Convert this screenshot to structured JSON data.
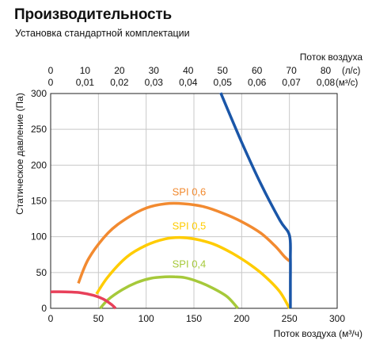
{
  "title": "Производительность",
  "subtitle": "Установка стандартной комплектации",
  "chart_data": {
    "type": "line",
    "xlabel": "Поток воздуха (м³/ч)",
    "ylabel": "Статическое давление (Па)",
    "top_axis_title": "Поток воздуха",
    "xlim": [
      0,
      300
    ],
    "ylim": [
      0,
      300
    ],
    "x_ticks": [
      "0",
      "50",
      "100",
      "150",
      "200",
      "250",
      "300"
    ],
    "y_ticks": [
      "0",
      "50",
      "100",
      "150",
      "200",
      "250",
      "300"
    ],
    "top_axis_ls": {
      "unit": "(л/с)",
      "ticks": [
        {
          "value": 0,
          "label": "0"
        },
        {
          "value": 10,
          "label": "10"
        },
        {
          "value": 20,
          "label": "20"
        },
        {
          "value": 30,
          "label": "30"
        },
        {
          "value": 40,
          "label": "40"
        },
        {
          "value": 50,
          "label": "50"
        },
        {
          "value": 60,
          "label": "60"
        },
        {
          "value": 70,
          "label": "70"
        },
        {
          "value": 80,
          "label": "80"
        }
      ]
    },
    "top_axis_m3s": {
      "unit": "(м³/с)",
      "ticks": [
        {
          "value": 0,
          "label": "0"
        },
        {
          "value": 0.01,
          "label": "0,01"
        },
        {
          "value": 0.02,
          "label": "0,02"
        },
        {
          "value": 0.03,
          "label": "0,03"
        },
        {
          "value": 0.04,
          "label": "0,04"
        },
        {
          "value": 0.05,
          "label": "0,05"
        },
        {
          "value": 0.06,
          "label": "0,06"
        },
        {
          "value": 0.07,
          "label": "0,07"
        },
        {
          "value": 0.08,
          "label": "0,08"
        }
      ]
    },
    "grid": true,
    "series": [
      {
        "name": "SPI 0,6",
        "color": "#f28a30",
        "points": [
          [
            29,
            35
          ],
          [
            40,
            70
          ],
          [
            60,
            105
          ],
          [
            80,
            126
          ],
          [
            100,
            140
          ],
          [
            120,
            146
          ],
          [
            140,
            146
          ],
          [
            160,
            142
          ],
          [
            180,
            133
          ],
          [
            200,
            121
          ],
          [
            220,
            105
          ],
          [
            235,
            87
          ],
          [
            245,
            72
          ],
          [
            250,
            66
          ]
        ]
      },
      {
        "name": "SPI 0,5",
        "color": "#ffcc00",
        "points": [
          [
            48,
            20
          ],
          [
            60,
            44
          ],
          [
            80,
            72
          ],
          [
            100,
            88
          ],
          [
            120,
            97
          ],
          [
            135,
            99
          ],
          [
            150,
            97
          ],
          [
            170,
            90
          ],
          [
            190,
            77
          ],
          [
            210,
            60
          ],
          [
            225,
            44
          ],
          [
            240,
            23
          ],
          [
            250,
            0
          ]
        ]
      },
      {
        "name": "SPI 0,4",
        "color": "#a6c93a",
        "points": [
          [
            52,
            0
          ],
          [
            60,
            12
          ],
          [
            75,
            26
          ],
          [
            90,
            36
          ],
          [
            105,
            42
          ],
          [
            120,
            44
          ],
          [
            130,
            44
          ],
          [
            140,
            43
          ],
          [
            155,
            37
          ],
          [
            170,
            28
          ],
          [
            185,
            16
          ],
          [
            196,
            0
          ]
        ]
      },
      {
        "name": "",
        "color": "#e8405a",
        "points": [
          [
            0,
            23
          ],
          [
            15,
            23
          ],
          [
            30,
            22
          ],
          [
            45,
            18
          ],
          [
            55,
            13
          ],
          [
            63,
            6
          ],
          [
            68,
            0
          ]
        ]
      },
      {
        "name": "",
        "color": "#1a56a8",
        "points": [
          [
            178,
            301
          ],
          [
            200,
            232
          ],
          [
            220,
            174
          ],
          [
            240,
            123
          ],
          [
            250,
            102
          ],
          [
            251,
            70
          ],
          [
            251,
            35
          ],
          [
            251,
            0
          ]
        ]
      }
    ]
  }
}
